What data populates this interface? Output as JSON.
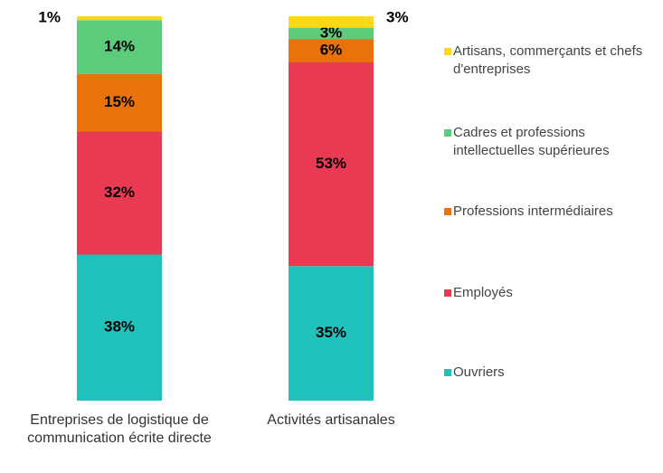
{
  "chart_data": {
    "type": "stacked_bar",
    "categories": [
      "Entreprises de logistique de communication écrite directe",
      "Activités artisanales"
    ],
    "series": [
      {
        "name": "Ouvriers",
        "color": "#21c2bc",
        "values": [
          38,
          35
        ],
        "value_labels": [
          "38%",
          "35%"
        ]
      },
      {
        "name": "Employés",
        "color": "#e93a53",
        "values": [
          32,
          53
        ],
        "value_labels": [
          "32%",
          "53%"
        ]
      },
      {
        "name": "Professions intermédiaires",
        "color": "#e9720b",
        "values": [
          15,
          6
        ],
        "value_labels": [
          "15%",
          "6%"
        ]
      },
      {
        "name": "Cadres et professions intellectuelles supérieures",
        "color": "#5ccc7b",
        "values": [
          14,
          3
        ],
        "value_labels": [
          "14%",
          "3%"
        ]
      },
      {
        "name": "Artisans, commerçants et chefs d'entreprises",
        "color": "#ffd815",
        "values": [
          1,
          3
        ],
        "value_labels": [
          "1%",
          "3%"
        ]
      }
    ]
  }
}
